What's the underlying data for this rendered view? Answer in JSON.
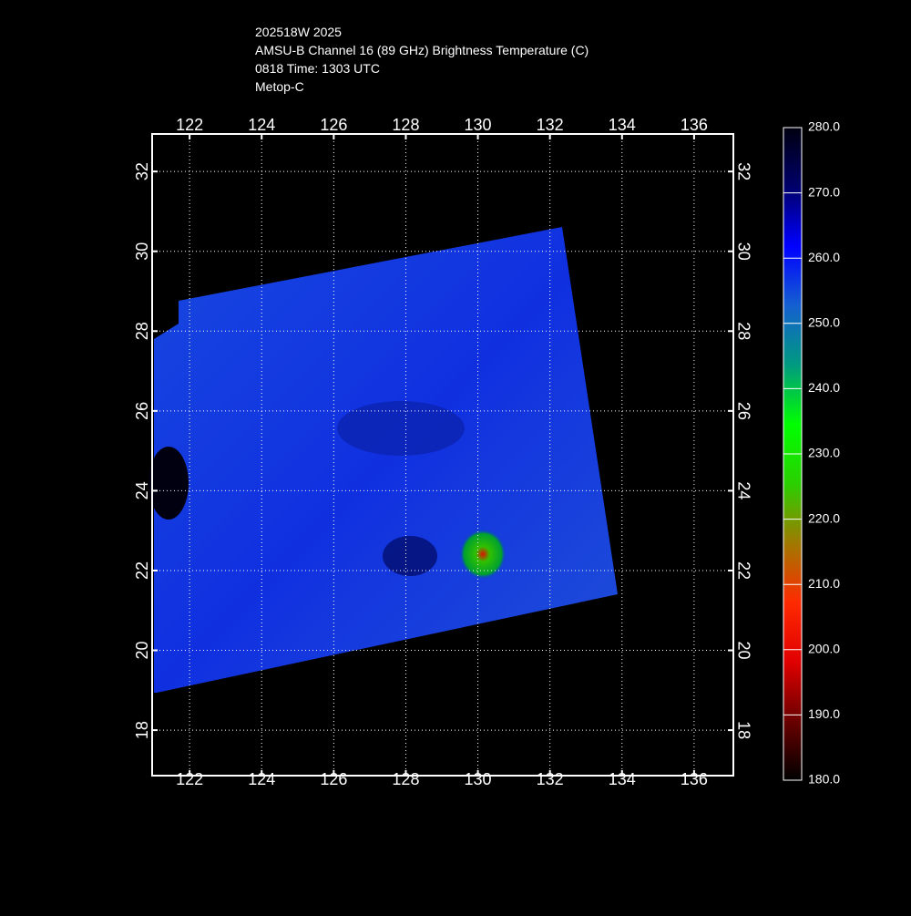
{
  "chart_data": {
    "type": "map",
    "title_lines": [
      "202518W 2025",
      "AMSU-B Channel 16 (89 GHz) Brightness Temperature (C)",
      "0818 Time: 1303 UTC",
      "Metop-C"
    ],
    "xlim": [
      120.96,
      137.09
    ],
    "ylim": [
      16.86,
      32.94
    ],
    "xticks": [
      122,
      124,
      126,
      128,
      130,
      132,
      134,
      136
    ],
    "yticks": [
      18,
      20,
      22,
      24,
      26,
      28,
      30,
      32
    ],
    "grid": true,
    "colorbar": {
      "lim": [
        180,
        280
      ],
      "ticks": [
        {
          "value": 180,
          "label": "180.0"
        },
        {
          "value": 190,
          "label": "190.0"
        },
        {
          "value": 200,
          "label": "200.0"
        },
        {
          "value": 210,
          "label": "210.0"
        },
        {
          "value": 220,
          "label": "220.0"
        },
        {
          "value": 230,
          "label": "230.0"
        },
        {
          "value": 240,
          "label": "240.0"
        },
        {
          "value": 250,
          "label": "250.0"
        },
        {
          "value": 260,
          "label": "260.0"
        },
        {
          "value": 270,
          "label": "270.0"
        },
        {
          "value": 280,
          "label": "280.0"
        }
      ],
      "colors": [
        "#000000",
        "#6a0000",
        "#e00000",
        "#ff2a00",
        "#a07a00",
        "#2ad000",
        "#00ff00",
        "#009a80",
        "#1560d0",
        "#0000ff",
        "#00006a",
        "#000010"
      ]
    }
  }
}
